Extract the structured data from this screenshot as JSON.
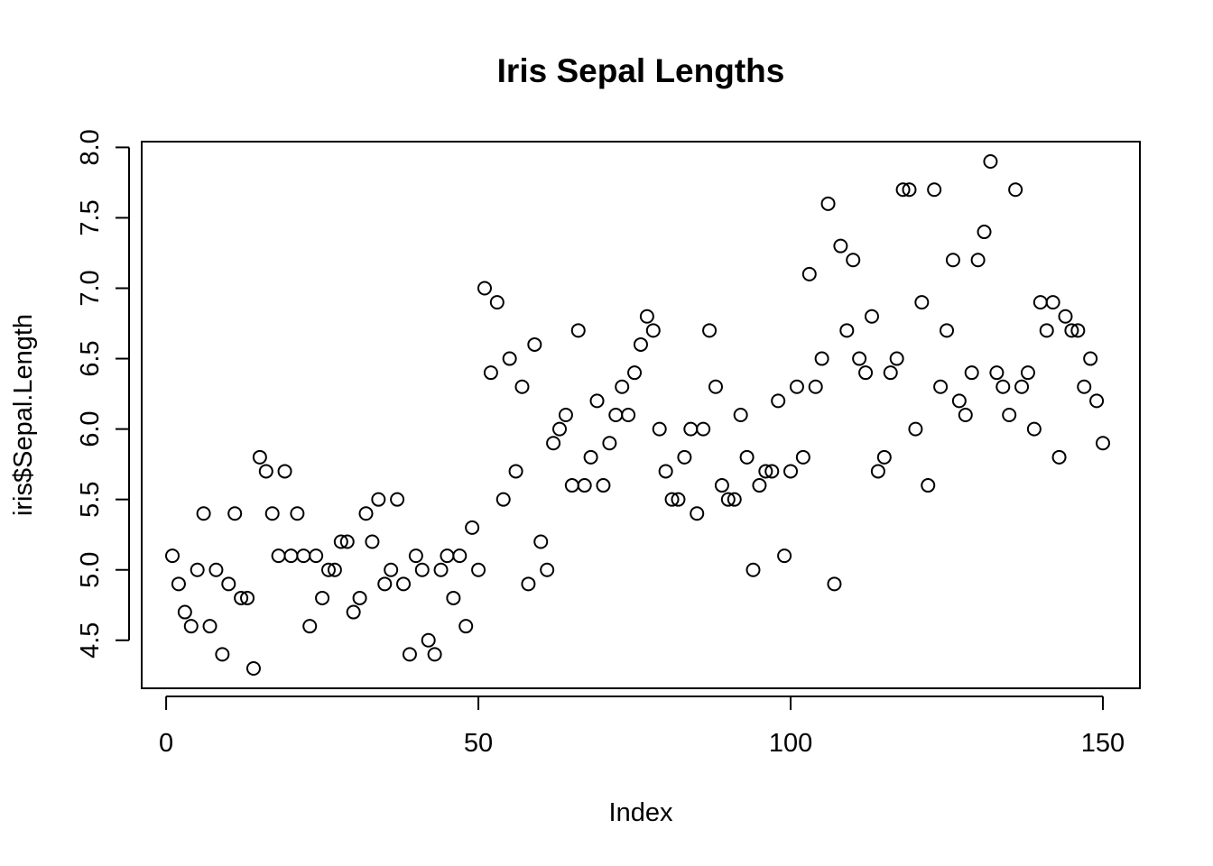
{
  "chart_data": {
    "type": "scatter",
    "title": "Iris Sepal Lengths",
    "xlabel": "Index",
    "ylabel": "iris$Sepal.Length",
    "xlim": [
      1,
      150
    ],
    "ylim": [
      4.3,
      7.9
    ],
    "x_ticks": [
      0,
      50,
      100,
      150
    ],
    "x_tick_labels": [
      "0",
      "50",
      "100",
      "150"
    ],
    "y_ticks": [
      4.5,
      5.0,
      5.5,
      6.0,
      6.5,
      7.0,
      7.5,
      8.0
    ],
    "y_tick_labels": [
      "4.5",
      "5.0",
      "5.5",
      "6.0",
      "6.5",
      "7.0",
      "7.5",
      "8.0"
    ],
    "grid": false,
    "marker": "open-circle",
    "color": "#000000",
    "x": [
      1,
      2,
      3,
      4,
      5,
      6,
      7,
      8,
      9,
      10,
      11,
      12,
      13,
      14,
      15,
      16,
      17,
      18,
      19,
      20,
      21,
      22,
      23,
      24,
      25,
      26,
      27,
      28,
      29,
      30,
      31,
      32,
      33,
      34,
      35,
      36,
      37,
      38,
      39,
      40,
      41,
      42,
      43,
      44,
      45,
      46,
      47,
      48,
      49,
      50,
      51,
      52,
      53,
      54,
      55,
      56,
      57,
      58,
      59,
      60,
      61,
      62,
      63,
      64,
      65,
      66,
      67,
      68,
      69,
      70,
      71,
      72,
      73,
      74,
      75,
      76,
      77,
      78,
      79,
      80,
      81,
      82,
      83,
      84,
      85,
      86,
      87,
      88,
      89,
      90,
      91,
      92,
      93,
      94,
      95,
      96,
      97,
      98,
      99,
      100,
      101,
      102,
      103,
      104,
      105,
      106,
      107,
      108,
      109,
      110,
      111,
      112,
      113,
      114,
      115,
      116,
      117,
      118,
      119,
      120,
      121,
      122,
      123,
      124,
      125,
      126,
      127,
      128,
      129,
      130,
      131,
      132,
      133,
      134,
      135,
      136,
      137,
      138,
      139,
      140,
      141,
      142,
      143,
      144,
      145,
      146,
      147,
      148,
      149,
      150
    ],
    "y": [
      5.1,
      4.9,
      4.7,
      4.6,
      5.0,
      5.4,
      4.6,
      5.0,
      4.4,
      4.9,
      5.4,
      4.8,
      4.8,
      4.3,
      5.8,
      5.7,
      5.4,
      5.1,
      5.7,
      5.1,
      5.4,
      5.1,
      4.6,
      5.1,
      4.8,
      5.0,
      5.0,
      5.2,
      5.2,
      4.7,
      4.8,
      5.4,
      5.2,
      5.5,
      4.9,
      5.0,
      5.5,
      4.9,
      4.4,
      5.1,
      5.0,
      4.5,
      4.4,
      5.0,
      5.1,
      4.8,
      5.1,
      4.6,
      5.3,
      5.0,
      7.0,
      6.4,
      6.9,
      5.5,
      6.5,
      5.7,
      6.3,
      4.9,
      6.6,
      5.2,
      5.0,
      5.9,
      6.0,
      6.1,
      5.6,
      6.7,
      5.6,
      5.8,
      6.2,
      5.6,
      5.9,
      6.1,
      6.3,
      6.1,
      6.4,
      6.6,
      6.8,
      6.7,
      6.0,
      5.7,
      5.5,
      5.5,
      5.8,
      6.0,
      5.4,
      6.0,
      6.7,
      6.3,
      5.6,
      5.5,
      5.5,
      6.1,
      5.8,
      5.0,
      5.6,
      5.7,
      5.7,
      6.2,
      5.1,
      5.7,
      6.3,
      5.8,
      7.1,
      6.3,
      6.5,
      7.6,
      4.9,
      7.3,
      6.7,
      7.2,
      6.5,
      6.4,
      6.8,
      5.7,
      5.8,
      6.4,
      6.5,
      7.7,
      7.7,
      6.0,
      6.9,
      5.6,
      7.7,
      6.3,
      6.7,
      7.2,
      6.2,
      6.1,
      6.4,
      7.2,
      7.4,
      7.9,
      6.4,
      6.3,
      6.1,
      7.7,
      6.3,
      6.4,
      6.0,
      6.9,
      6.7,
      6.9,
      5.8,
      6.8,
      6.7,
      6.7,
      6.3,
      6.5,
      6.2,
      5.9
    ]
  }
}
